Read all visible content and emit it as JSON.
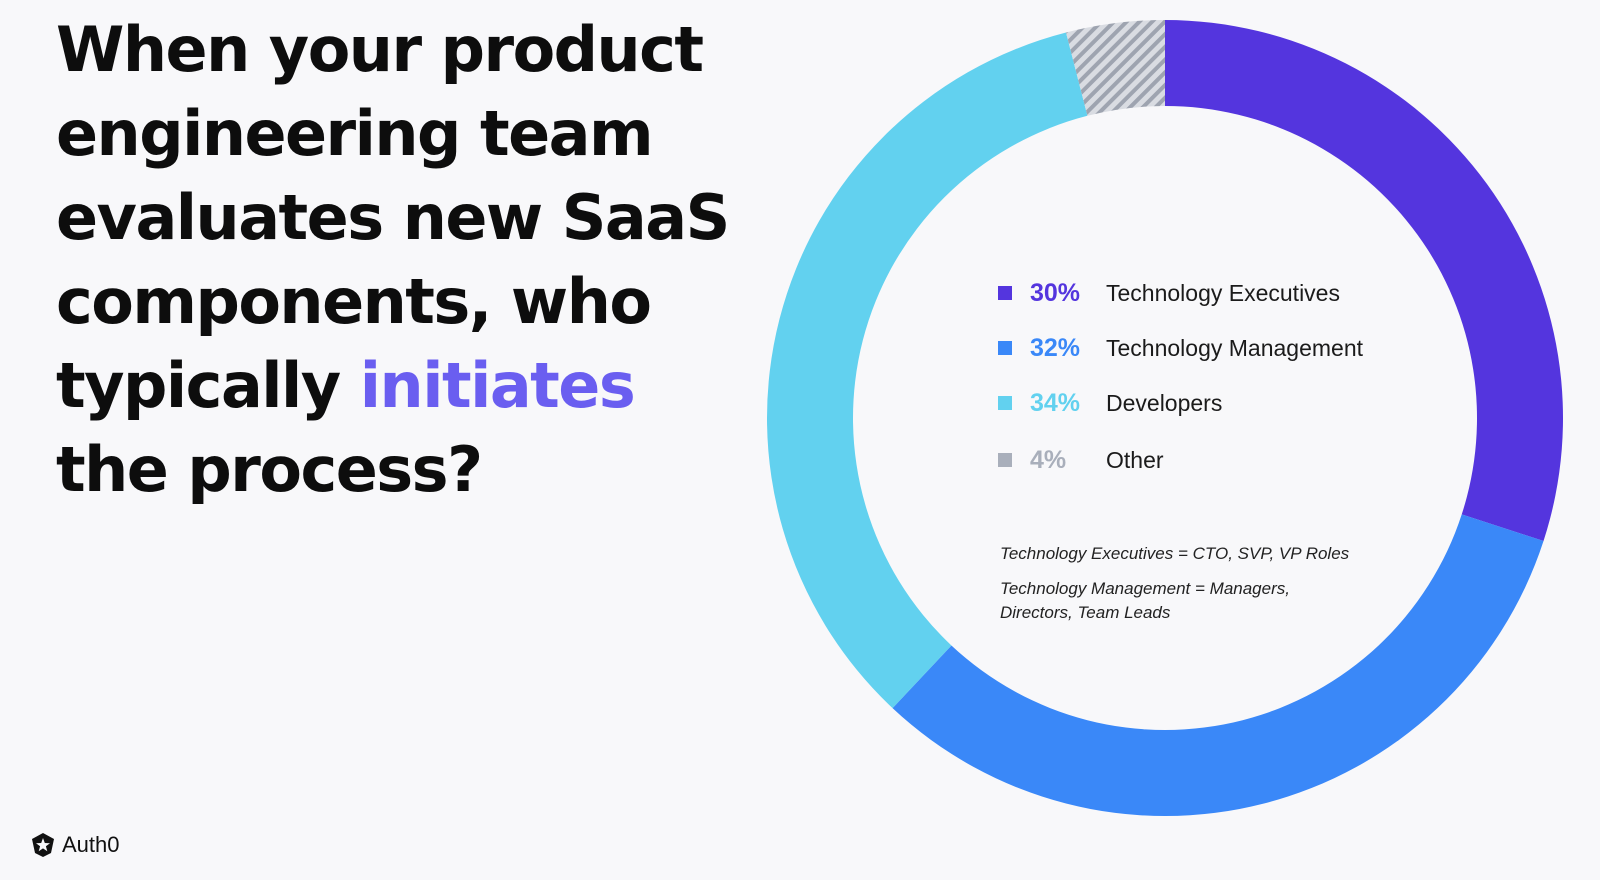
{
  "headline": {
    "part1": "When your product engineering team evaluates new SaaS components, who typically",
    "highlight": "initiates",
    "part2": "the process?"
  },
  "brand": {
    "name": "Auth0",
    "icon": "auth0-shield-star-icon"
  },
  "colors": {
    "background": "#f8f8fa",
    "highlight": "#6a5ef0",
    "executives": "#5435de",
    "management": "#3a88f8",
    "developers": "#62d1ef",
    "other": "#a9afbb"
  },
  "chart_data": {
    "type": "pie",
    "variant": "donut",
    "categories": [
      "Technology Executives",
      "Technology Management",
      "Developers",
      "Other"
    ],
    "values": [
      30,
      32,
      34,
      4
    ],
    "value_labels": [
      "30%",
      "32%",
      "34%",
      "4%"
    ],
    "legend_position": "center",
    "notes": [
      "Technology Executives = CTO, SVP, VP Roles",
      "Technology Management = Managers, Directors, Team Leads"
    ]
  }
}
